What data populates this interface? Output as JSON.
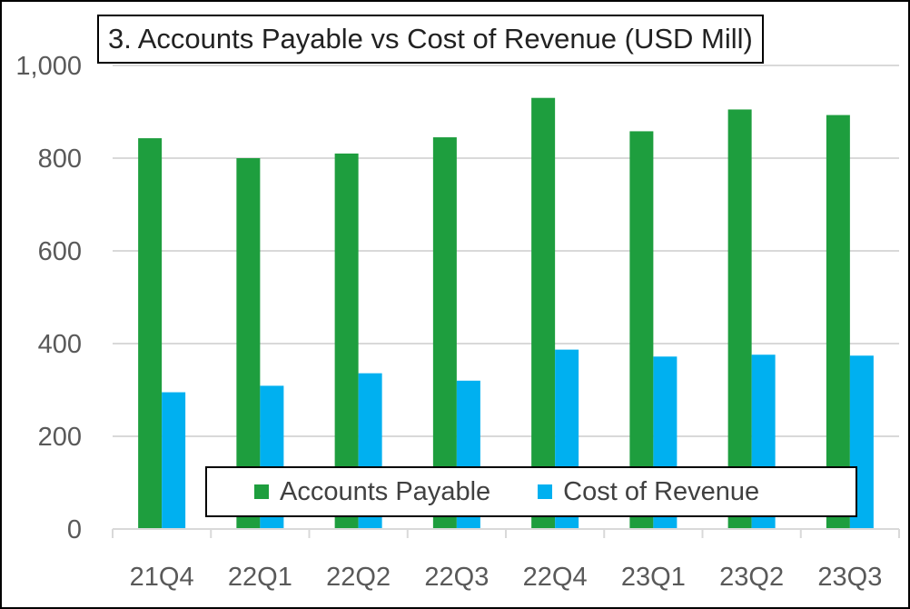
{
  "chart_data": {
    "type": "bar",
    "title": "3. Accounts Payable vs Cost of Revenue (USD Mill)",
    "categories": [
      "21Q4",
      "22Q1",
      "22Q2",
      "22Q3",
      "22Q4",
      "23Q1",
      "23Q2",
      "23Q3"
    ],
    "series": [
      {
        "name": "Accounts Payable",
        "color": "#1e9e3e",
        "values": [
          843,
          800,
          810,
          845,
          930,
          858,
          905,
          893
        ]
      },
      {
        "name": "Cost of Revenue",
        "color": "#00b0f0",
        "values": [
          295,
          309,
          336,
          320,
          387,
          372,
          376,
          374
        ]
      }
    ],
    "yticks": [
      "0",
      "200",
      "400",
      "600",
      "800",
      "1,000"
    ],
    "ylim": [
      0,
      1000
    ],
    "xlabel": "",
    "ylabel": "",
    "grid": true,
    "legend_position": "bottom-inside"
  }
}
